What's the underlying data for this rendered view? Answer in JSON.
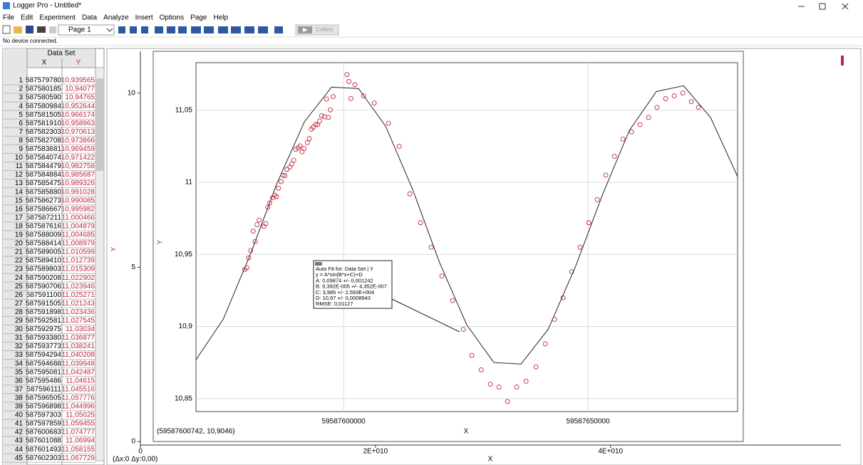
{
  "window": {
    "title": "Logger Pro - Untitled*"
  },
  "menu": [
    "File",
    "Edit",
    "Experiment",
    "Data",
    "Analyze",
    "Insert",
    "Options",
    "Page",
    "Help"
  ],
  "toolbar": {
    "page": "Page 1",
    "collect": "Collect"
  },
  "status": "No device connected.",
  "table": {
    "title": "Data Set",
    "columns": [
      "X",
      "Y"
    ],
    "rows": [
      [
        "1",
        "587579780",
        "10,939565"
      ],
      [
        "2",
        "587580185",
        "10,94077"
      ],
      [
        "3",
        "587580590",
        "10,94765"
      ],
      [
        "4",
        "587580984",
        "10,952644"
      ],
      [
        "5",
        "587581505",
        "10,966174"
      ],
      [
        "6",
        "587581910",
        "10,958963"
      ],
      [
        "7",
        "587582303",
        "10,970613"
      ],
      [
        "8",
        "587582708",
        "10,973866"
      ],
      [
        "9",
        "587583681",
        "10,969459"
      ],
      [
        "10",
        "587584074",
        "10,971422"
      ],
      [
        "11",
        "587584479",
        "10,982758"
      ],
      [
        "12",
        "587584884",
        "10,985687"
      ],
      [
        "13",
        "587585475",
        "10,989326"
      ],
      [
        "14",
        "587585880",
        "10,991028"
      ],
      [
        "15",
        "587586273",
        "10,990085"
      ],
      [
        "16",
        "587586667",
        "10,995982"
      ],
      [
        "17",
        "587587211",
        "11,000466"
      ],
      [
        "18",
        "587587616",
        "11,004879"
      ],
      [
        "19",
        "587588009",
        "11,004685"
      ],
      [
        "20",
        "587588414",
        "11,008979"
      ],
      [
        "21",
        "587589005",
        "11,010599"
      ],
      [
        "22",
        "587589410",
        "11,012739"
      ],
      [
        "23",
        "587589803",
        "11,015309"
      ],
      [
        "24",
        "587590208",
        "11,022902"
      ],
      [
        "25",
        "587590706",
        "11,023946"
      ],
      [
        "26",
        "587591100",
        "11,025271"
      ],
      [
        "27",
        "587591505",
        "11,021243"
      ],
      [
        "28",
        "587591898",
        "11,023436"
      ],
      [
        "29",
        "587592581",
        "11,027545"
      ],
      [
        "30",
        "587592975",
        "11,03034"
      ],
      [
        "31",
        "587593380",
        "11,036877"
      ],
      [
        "32",
        "587593773",
        "11,038241"
      ],
      [
        "33",
        "587594294",
        "11,040208"
      ],
      [
        "34",
        "587594688",
        "11,039948"
      ],
      [
        "35",
        "587595081",
        "11,042487"
      ],
      [
        "36",
        "587595486",
        "11,04615"
      ],
      [
        "37",
        "587596111",
        "11,045516"
      ],
      [
        "38",
        "587596505",
        "11,057776"
      ],
      [
        "39",
        "587596898",
        "11,044996"
      ],
      [
        "40",
        "587597303",
        "11,05025"
      ],
      [
        "41",
        "587597859",
        "11,059455"
      ],
      [
        "42",
        "587600683",
        "11,074777"
      ],
      [
        "43",
        "587601088",
        "11,06994"
      ],
      [
        "44",
        "587601493",
        "11,058155"
      ],
      [
        "45",
        "587602303",
        "11,067729"
      ]
    ]
  },
  "graph": {
    "x_label": "X",
    "y_label": "Y",
    "readout": "(Δx:0 Δy:0,00)",
    "xlim": [
      0,
      59600000000
    ],
    "ylim": [
      -0.1,
      11.2
    ],
    "xticks": [
      0,
      {
        "value": 20000000000,
        "label": "2E+010"
      },
      {
        "value": 40000000000,
        "label": "4E+010"
      }
    ],
    "yticks": [
      0,
      5,
      10
    ]
  },
  "inset_graph": {
    "type": "scatter",
    "x_label": "X",
    "y_label": "Y",
    "readout": "(59587600742, 10,9046)",
    "xlim": [
      59587569800,
      59587680600
    ],
    "ylim": [
      10.841,
      11.083
    ],
    "xticks": [
      59587600000,
      59587650000
    ],
    "yticks": [
      {
        "value": 10.85,
        "label": "10,85"
      },
      {
        "value": 10.9,
        "label": "10,9"
      },
      {
        "value": 10.95,
        "label": "10,95"
      },
      {
        "value": 11,
        "label": "11"
      },
      {
        "value": 11.05,
        "label": "11,05"
      }
    ],
    "color": "#c0283c",
    "points": {
      "x": [
        59587579780,
        59587580185,
        59587580590,
        59587580984,
        59587581505,
        59587581910,
        59587582303,
        59587582708,
        59587583681,
        59587584074,
        59587584479,
        59587584884,
        59587585475,
        59587585880,
        59587586273,
        59587586667,
        59587587211,
        59587587616,
        59587588009,
        59587588414,
        59587589005,
        59587589410,
        59587589803,
        59587590208,
        59587590706,
        59587591100,
        59587591505,
        59587591898,
        59587592581,
        59587592975,
        59587593380,
        59587593773,
        59587594294,
        59587594688,
        59587595081,
        59587595486,
        59587596111,
        59587596505,
        59587596898,
        59587597303,
        59587597859,
        59587600683,
        59587601088,
        59587601493,
        59587602303,
        59587604082,
        59587606268,
        59587609184,
        59587611370,
        59587613557,
        59587615744,
        59587617930,
        59587620117,
        59587622303,
        59587624490,
        59587626239,
        59587628134,
        59587630029,
        59587631779,
        59587633528,
        59587635423,
        59587637318,
        59587639359,
        59587641254,
        59587643149,
        59587644898,
        59587646647,
        59587648397,
        59587650146,
        59587651895,
        59587653645,
        59587655394,
        59587657143,
        59587658892,
        59587660642,
        59587662391,
        59587664140,
        59587665889,
        59587667639,
        59587669388,
        59587671137,
        59587672595
      ],
      "y": [
        10.939565,
        10.94077,
        10.94765,
        10.952644,
        10.966174,
        10.958963,
        10.970613,
        10.973866,
        10.969459,
        10.971422,
        10.982758,
        10.985687,
        10.989326,
        10.991028,
        10.990085,
        10.995982,
        11.000466,
        11.004879,
        11.004685,
        11.008979,
        11.010599,
        11.012739,
        11.015309,
        11.022902,
        11.023946,
        11.025271,
        11.021243,
        11.023436,
        11.027545,
        11.03034,
        11.036877,
        11.038241,
        11.040208,
        11.039948,
        11.042487,
        11.04615,
        11.045516,
        11.057776,
        11.044996,
        11.05025,
        11.059455,
        11.074777,
        11.06994,
        11.058155,
        11.067729,
        11.06,
        11.055,
        11.041,
        11.025,
        10.992,
        10.972,
        10.955,
        10.935,
        10.918,
        10.898,
        10.88,
        10.87,
        10.86,
        10.858,
        10.848,
        10.858,
        10.862,
        10.872,
        10.888,
        10.905,
        10.92,
        10.938,
        10.955,
        10.972,
        10.988,
        11.005,
        11.018,
        11.03,
        11.035,
        11.04,
        11.045,
        11.052,
        11.058,
        11.06,
        11.062,
        11.056,
        11.052
      ]
    },
    "fit": {
      "x": [
        59587569800,
        59587575364,
        59587580904,
        59587586443,
        59587591982,
        59587597522,
        59587603061,
        59587608601,
        59587614140,
        59587619679,
        59587625219,
        59587630758,
        59587636297,
        59587641837,
        59587647376,
        59587652916,
        59587658455,
        59587663994,
        59587669534,
        59587675073,
        59587680600
      ],
      "y": [
        10.877,
        10.905,
        10.95,
        11.0,
        11.042,
        11.066,
        11.065,
        11.039,
        10.995,
        10.944,
        10.901,
        10.875,
        10.874,
        10.898,
        10.941,
        10.991,
        11.036,
        11.063,
        11.067,
        11.045,
        11.004
      ],
      "label": [
        "Auto Fit for: Data Set | Y",
        "y = A*sin(B*x+C)+D",
        "A: 0,09874 +/- 0,001242",
        "B: 9,392E-005 +/- 4,352E-007",
        "C: 3,985 +/- 2,593E+004",
        "D: 10,97 +/- 0,0008943",
        "RMSE: 0,01127"
      ]
    }
  }
}
